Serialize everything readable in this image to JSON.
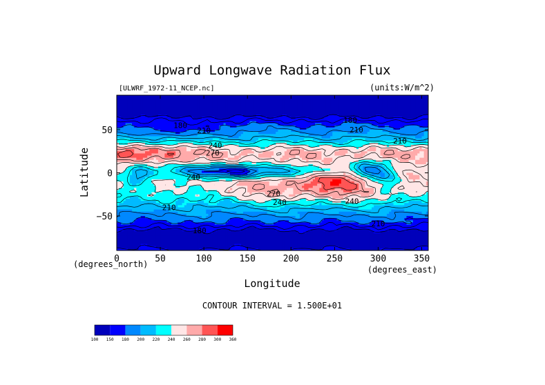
{
  "chart_data": {
    "type": "heatmap",
    "title": "Upward Longwave Radiation Flux",
    "source_label": "[ULWRF_1972-11_NCEP.nc]",
    "units_label": "(units:W/m^2)",
    "xlabel": "Longitude",
    "ylabel": "Latitude",
    "x_unit_label": "(degrees_east)",
    "y_unit_label": "(degrees_north)",
    "xlim": [
      0,
      357.5
    ],
    "ylim": [
      -90,
      90
    ],
    "x_ticks": [
      0,
      50,
      100,
      150,
      200,
      250,
      300,
      350
    ],
    "y_ticks": [
      50,
      0,
      -50
    ],
    "x_tick_labels": [
      "0",
      "50",
      "100",
      "150",
      "200",
      "250",
      "300",
      "350"
    ],
    "y_tick_labels": [
      "50",
      "0",
      "−50"
    ],
    "contour_interval_text": "CONTOUR INTERVAL = 1.500E+01",
    "contour_labels": [
      {
        "lon": 73,
        "lat": 52,
        "text": "180"
      },
      {
        "lon": 100,
        "lat": 46,
        "text": "210"
      },
      {
        "lon": 113,
        "lat": 29,
        "text": "240"
      },
      {
        "lon": 110,
        "lat": 20,
        "text": "270"
      },
      {
        "lon": 88,
        "lat": -8,
        "text": "240"
      },
      {
        "lon": 60,
        "lat": -43,
        "text": "210"
      },
      {
        "lon": 95,
        "lat": -70,
        "text": "180"
      },
      {
        "lon": 180,
        "lat": -27,
        "text": "270"
      },
      {
        "lon": 187,
        "lat": -37,
        "text": "240"
      },
      {
        "lon": 270,
        "lat": -36,
        "text": "240"
      },
      {
        "lon": 300,
        "lat": -62,
        "text": "210"
      },
      {
        "lon": 275,
        "lat": 47,
        "text": "210"
      },
      {
        "lon": 268,
        "lat": 58,
        "text": "180"
      },
      {
        "lon": 325,
        "lat": 34,
        "text": "210"
      }
    ],
    "colorbar": {
      "levels": [
        "100",
        "150",
        "180",
        "200",
        "220",
        "240",
        "260",
        "280",
        "300",
        "360"
      ],
      "colors": [
        "#0000bb",
        "#0000ff",
        "#0088ff",
        "#00bbff",
        "#00ffff",
        "#ffe6e6",
        "#ffaaaa",
        "#ff5555",
        "#ff0000"
      ]
    }
  }
}
